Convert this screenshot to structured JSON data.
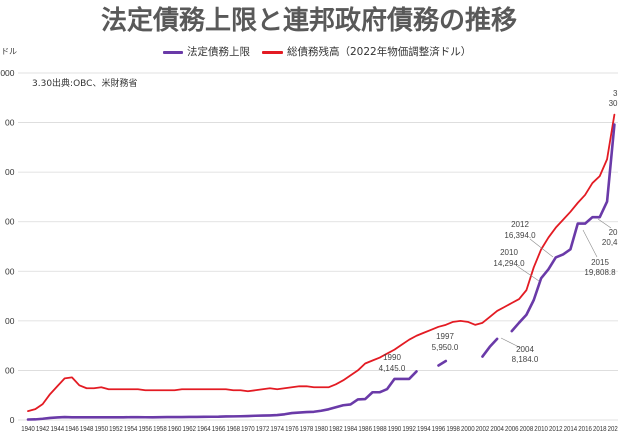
{
  "chart_data": {
    "type": "line",
    "title": "法定債務上限と連邦政府債務の推移",
    "ylabel": "ドル",
    "note": "3.30出典:OBC、米財務省",
    "legend_position": "top",
    "grid": true,
    "grid_color": "#d9d9d9",
    "xlim": [
      1940,
      2020
    ],
    "ylim": [
      0,
      35000
    ],
    "y_tick_labels": [
      "0",
      "00",
      "00",
      "00",
      "00",
      "00",
      "00",
      "000"
    ],
    "x_tick_labels": [
      "1940",
      "1942",
      "1944",
      "1946",
      "1948",
      "1950",
      "1952",
      "1954",
      "1956",
      "1958",
      "1960",
      "1962",
      "1964",
      "1966",
      "1968",
      "1970",
      "1972",
      "1974",
      "1976",
      "1978",
      "1980",
      "1982",
      "1984",
      "1986",
      "1988",
      "1990",
      "1992",
      "1994",
      "1996",
      "1998",
      "2000",
      "2002",
      "2004",
      "2006",
      "2008",
      "2010",
      "2012",
      "2014",
      "2016",
      "2018",
      "202"
    ],
    "x": [
      1940,
      1941,
      1942,
      1943,
      1944,
      1945,
      1946,
      1947,
      1948,
      1949,
      1950,
      1951,
      1952,
      1953,
      1954,
      1955,
      1956,
      1957,
      1958,
      1959,
      1960,
      1961,
      1962,
      1963,
      1964,
      1965,
      1966,
      1967,
      1968,
      1969,
      1970,
      1971,
      1972,
      1973,
      1974,
      1975,
      1976,
      1977,
      1978,
      1979,
      1980,
      1981,
      1982,
      1983,
      1984,
      1985,
      1986,
      1987,
      1988,
      1989,
      1990,
      1991,
      1992,
      1993,
      1994,
      1995,
      1996,
      1997,
      1998,
      1999,
      2000,
      2001,
      2002,
      2003,
      2004,
      2005,
      2006,
      2007,
      2008,
      2009,
      2010,
      2011,
      2012,
      2013,
      2014,
      2015,
      2016,
      2017,
      2018,
      2019,
      2020
    ],
    "series": [
      {
        "name": "法定債務上限",
        "color": "#6a3aa8",
        "values": [
          49,
          65,
          125,
          210,
          260,
          300,
          275,
          275,
          275,
          275,
          275,
          275,
          275,
          275,
          281,
          281,
          278,
          275,
          288,
          295,
          293,
          298,
          308,
          309,
          324,
          328,
          330,
          358,
          365,
          377,
          395,
          430,
          450,
          465,
          495,
          577,
          700,
          752,
          798,
          830,
          935,
          1079,
          1290,
          1490,
          1573,
          2079,
          2111,
          2800,
          2800,
          3123,
          4145,
          4145,
          4145,
          4900,
          null,
          null,
          5500,
          5950,
          null,
          null,
          null,
          null,
          6400,
          7384,
          8184,
          null,
          8965,
          9815,
          10615,
          12104,
          14294,
          15194,
          16394,
          16699,
          17212,
          19809,
          19809,
          20456,
          20456,
          22030,
          29800
        ]
      },
      {
        "name": "総債務残高（2022年物価調整済ドル）",
        "color": "#e31b23",
        "values": [
          900,
          1100,
          1600,
          2600,
          3400,
          4200,
          4300,
          3500,
          3200,
          3200,
          3300,
          3100,
          3100,
          3100,
          3100,
          3100,
          3000,
          3000,
          3000,
          3000,
          3000,
          3100,
          3100,
          3100,
          3100,
          3100,
          3100,
          3100,
          3000,
          3000,
          2900,
          3000,
          3100,
          3200,
          3100,
          3200,
          3300,
          3400,
          3400,
          3300,
          3300,
          3300,
          3600,
          4000,
          4500,
          5000,
          5700,
          6000,
          6300,
          6700,
          7100,
          7600,
          8100,
          8500,
          8800,
          9100,
          9400,
          9600,
          9900,
          10000,
          9900,
          9600,
          9800,
          10400,
          11000,
          11400,
          11800,
          12200,
          13100,
          15400,
          17200,
          18400,
          19400,
          20200,
          21000,
          21900,
          22700,
          23900,
          24600,
          26300,
          30800
        ]
      }
    ],
    "annotations": [
      {
        "label": "1990",
        "value_label": "4,145.0"
      },
      {
        "label": "1997",
        "value_label": "5,950.0"
      },
      {
        "label": "2004",
        "value_label": "8,184.0"
      },
      {
        "label": "2010",
        "value_label": "14,294.0"
      },
      {
        "label": "2012",
        "value_label": "16,394.0"
      },
      {
        "label": "2015",
        "value_label": "19,808.8"
      },
      {
        "label": "20",
        "value_label": "20,4"
      },
      {
        "label": "3",
        "value_label": "30"
      }
    ]
  }
}
